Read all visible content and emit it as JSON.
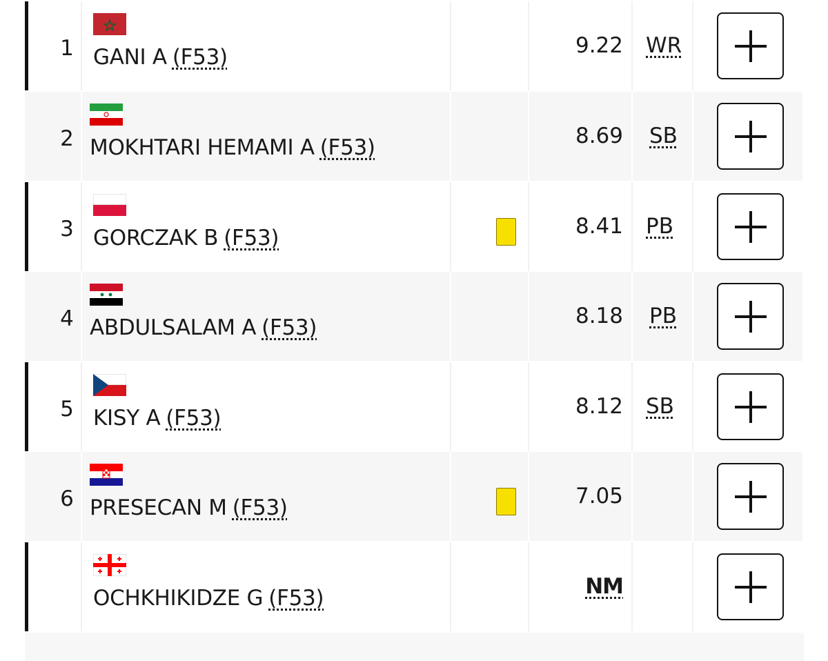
{
  "rows": [
    {
      "rank": 1,
      "name": "GANI A",
      "class": "(F53)",
      "result": "9.22",
      "record": "WR"
    },
    {
      "rank": 2,
      "name": "MOKHTARI HEMAMI A",
      "class": "(F53)",
      "result": "8.69",
      "record": "SB"
    },
    {
      "rank": 3,
      "name": "GORCZAK B",
      "class": "(F53)",
      "result": "8.41",
      "record": "PB"
    },
    {
      "rank": 4,
      "name": "ABDULSALAM A",
      "class": "(F53)",
      "result": "8.18",
      "record": "PB"
    },
    {
      "rank": 5,
      "name": "KISY A",
      "class": "(F53)",
      "result": "8.12",
      "record": "SB"
    },
    {
      "rank": 6,
      "name": "PRESECAN M",
      "class": "(F53)",
      "result": "7.05"
    },
    {
      "name": "OCHKHIKIDZE G",
      "class": "(F53)",
      "result": "NM"
    }
  ]
}
